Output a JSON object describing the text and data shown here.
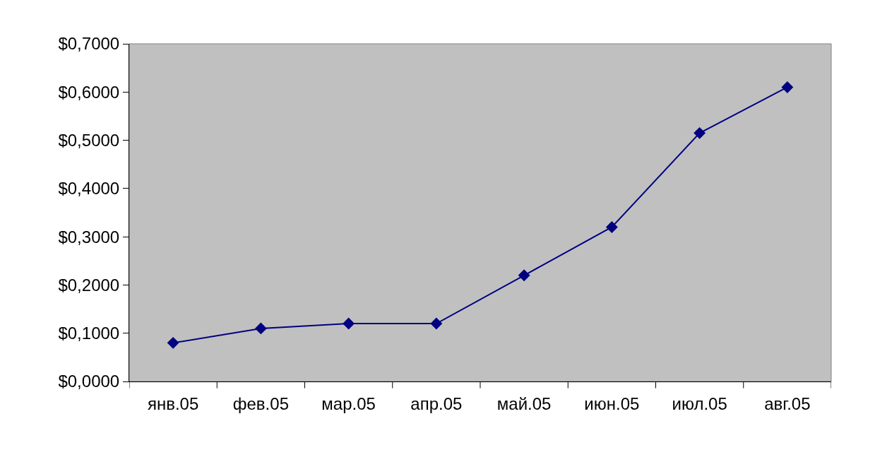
{
  "chart_data": {
    "type": "line",
    "categories": [
      "янв.05",
      "фев.05",
      "мар.05",
      "апр.05",
      "май.05",
      "июн.05",
      "июл.05",
      "авг.05"
    ],
    "series": [
      {
        "color": "#000080",
        "values": [
          0.08,
          0.11,
          0.12,
          0.12,
          0.22,
          0.32,
          0.515,
          0.61
        ]
      }
    ],
    "ylim": [
      0,
      0.7
    ],
    "yticks": [
      {
        "value": 0,
        "label": "$0,0000"
      },
      {
        "value": 0.1,
        "label": "$0,1000"
      },
      {
        "value": 0.2,
        "label": "$0,2000"
      },
      {
        "value": 0.3,
        "label": "$0,3000"
      },
      {
        "value": 0.4,
        "label": "$0,4000"
      },
      {
        "value": 0.5,
        "label": "$0,5000"
      },
      {
        "value": 0.6,
        "label": "$0,6000"
      },
      {
        "value": 0.7,
        "label": "$0,7000"
      }
    ],
    "marker": "diamond",
    "line_style": "solid",
    "grid": false,
    "legend": false
  }
}
